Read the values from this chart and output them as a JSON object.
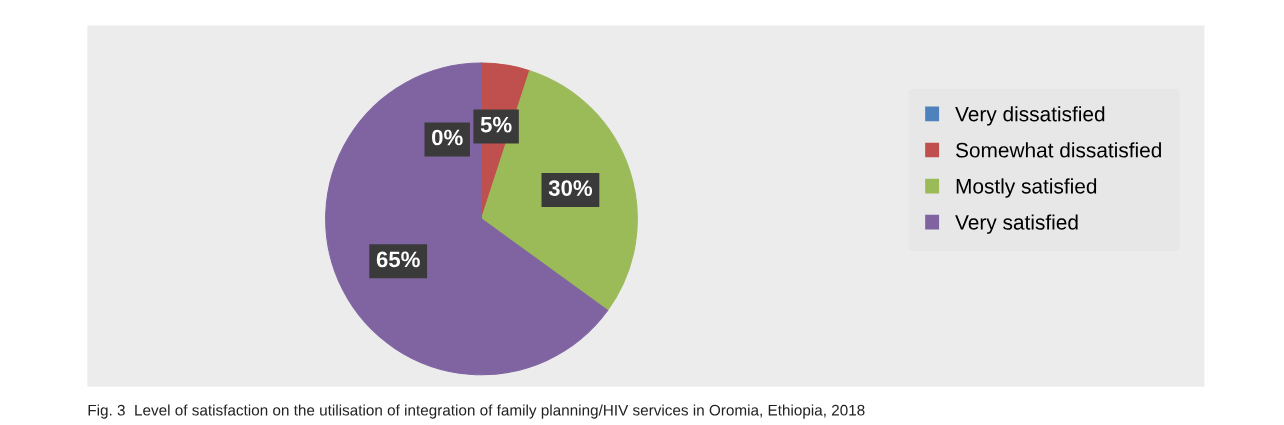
{
  "chart_data": {
    "type": "pie",
    "title": "Fig. 3  Level of satisfaction on the utilisation of integration of family planning/HIV services in Oromia, Ethiopia, 2018",
    "categories": [
      "Very dissatisfied",
      "Somewhat dissatisfied",
      "Mostly satisfied",
      "Very satisfied"
    ],
    "values": [
      0,
      5,
      30,
      65
    ],
    "colors": [
      "#4f81bd",
      "#c0504d",
      "#9bbb59",
      "#8064a2"
    ],
    "value_labels": [
      "0%",
      "5%",
      "30%",
      "65%"
    ],
    "legend": "right"
  }
}
